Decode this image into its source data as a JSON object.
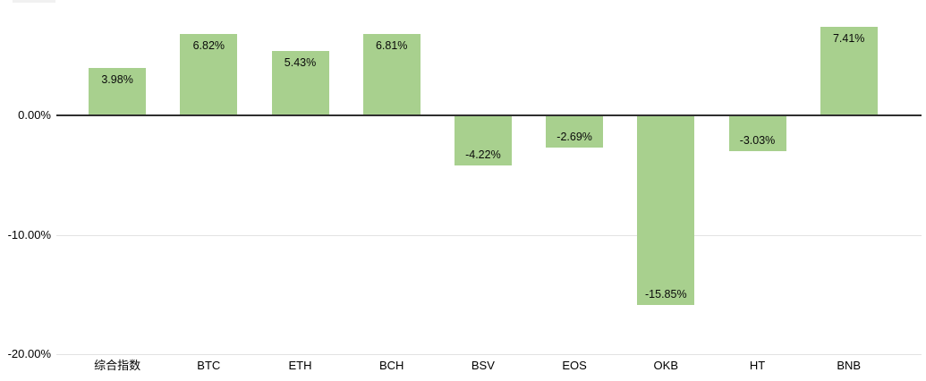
{
  "chart_data": {
    "type": "bar",
    "title": "",
    "xlabel": "",
    "ylabel": "",
    "categories": [
      "综合指数",
      "BTC",
      "ETH",
      "BCH",
      "BSV",
      "EOS",
      "OKB",
      "HT",
      "BNB"
    ],
    "values": [
      3.98,
      6.82,
      5.43,
      6.81,
      -4.22,
      -2.69,
      -15.85,
      -3.03,
      7.41
    ],
    "value_labels": [
      "3.98%",
      "6.82%",
      "5.43%",
      "6.81%",
      "-4.22%",
      "-2.69%",
      "-15.85%",
      "-3.03%",
      "7.41%"
    ],
    "yticks": [
      {
        "value": 0,
        "label": "0.00%"
      },
      {
        "value": -10,
        "label": "-10.00%"
      },
      {
        "value": -20,
        "label": "-20.00%"
      }
    ],
    "ylim": [
      -20,
      9.7
    ],
    "grid": "horizontal",
    "legend_position": "none",
    "colors": {
      "bar_fill": "#a8d08e",
      "value_label_text": "#0a0a0a",
      "zero_axis_line": "#2f2f2f",
      "grid_line": "#e2e2e2",
      "axis_tick_text": "#000000",
      "background": "#ffffff"
    }
  }
}
